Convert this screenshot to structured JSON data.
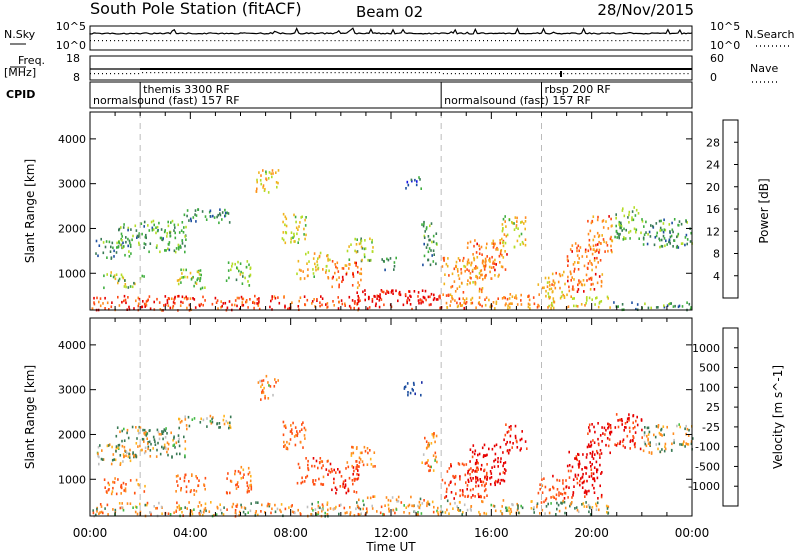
{
  "header": {
    "station": "South Pole Station (fitACF)",
    "beam": "Beam 02",
    "date": "28/Nov/2015"
  },
  "top_panel": {
    "nsky_label": "N.Sky",
    "nsky_ticks": [
      "10^5",
      "10^0"
    ],
    "nsearch_label": "N.Search",
    "nsearch_ticks": [
      "10^5",
      "10^0"
    ],
    "freq_label": "Freq.",
    "freq_unit": "[MHz]",
    "freq_ticks": [
      "18",
      "8"
    ],
    "nave_label": "Nave",
    "nave_ticks": [
      "60",
      "0"
    ],
    "cpid_label": "CPID",
    "modes": [
      {
        "label": "normalsound (fast) 157 RF",
        "start_h": 0.0
      },
      {
        "label": "themis 3300 RF",
        "start_h": 2.0
      },
      {
        "label": "normalsound (fast) 157 RF",
        "start_h": 14.0
      },
      {
        "label": "rbsp 200 RF",
        "start_h": 18.0
      }
    ]
  },
  "colors": {
    "power": [
      "#1414e6",
      "#1e4fa0",
      "#3a7a55",
      "#3fae3f",
      "#b4dc28",
      "#f0b41e",
      "#ff8c1e",
      "#ff4a14",
      "#e60000"
    ],
    "velocity": [
      "#1c2fa6",
      "#1e4fa0",
      "#3a7a55",
      "#44bb44",
      "#c0c0c0",
      "#ffb41e",
      "#ff8c1e",
      "#ff5014",
      "#e60000"
    ],
    "mode_marker": "#bbbbbb"
  },
  "axes": {
    "xlabel": "Time UT",
    "ylabel_range": "Slant Range [km]"
  },
  "colorbars": {
    "power": {
      "label": "Power [dB]",
      "ticks": [
        "28",
        "24",
        "20",
        "16",
        "12",
        "8",
        "4"
      ]
    },
    "velocity": {
      "label": "Velocity [m s^-1]",
      "ticks": [
        "1000",
        "500",
        "100",
        "25",
        "-25",
        "-100",
        "-500",
        "-1000"
      ]
    }
  },
  "chart_data": [
    {
      "type": "heatmap",
      "title": "Power",
      "xlabel": "Time UT",
      "ylabel": "Slant Range [km]",
      "x_range_hours": [
        0,
        24
      ],
      "x_ticks": [
        "00:00",
        "04:00",
        "08:00",
        "12:00",
        "16:00",
        "20:00",
        "00:00"
      ],
      "y_range_km": [
        180,
        4600
      ],
      "y_ticks": [
        1000,
        2000,
        3000,
        4000
      ],
      "colorbar_label": "Power [dB]",
      "colorbar_ticks": [
        4,
        8,
        12,
        16,
        20,
        24,
        28
      ],
      "colorbar_range": [
        0,
        30
      ],
      "echo_regions": [
        {
          "t0": 0.0,
          "t1": 10.8,
          "r0": 200,
          "r1": 520,
          "value": 26
        },
        {
          "t0": 10.5,
          "t1": 14.0,
          "r0": 220,
          "r1": 650,
          "value": 29
        },
        {
          "t0": 14.0,
          "t1": 18.0,
          "r0": 240,
          "r1": 560,
          "value": 22
        },
        {
          "t0": 18.0,
          "t1": 20.8,
          "r0": 240,
          "r1": 520,
          "value": 18
        },
        {
          "t0": 20.8,
          "t1": 24.0,
          "r0": 200,
          "r1": 380,
          "value": 9
        },
        {
          "t0": 0.2,
          "t1": 1.6,
          "r0": 1350,
          "r1": 1800,
          "value": 9
        },
        {
          "t0": 1.0,
          "t1": 3.8,
          "r0": 1500,
          "r1": 2200,
          "value": 11
        },
        {
          "t0": 3.5,
          "t1": 5.6,
          "r0": 2150,
          "r1": 2450,
          "value": 8
        },
        {
          "t0": 0.5,
          "t1": 2.2,
          "r0": 700,
          "r1": 1050,
          "value": 14
        },
        {
          "t0": 3.4,
          "t1": 4.6,
          "r0": 680,
          "r1": 1150,
          "value": 15
        },
        {
          "t0": 5.4,
          "t1": 6.4,
          "r0": 700,
          "r1": 1300,
          "value": 12
        },
        {
          "t0": 6.6,
          "t1": 7.5,
          "r0": 2800,
          "r1": 3350,
          "value": 18
        },
        {
          "t0": 7.6,
          "t1": 8.6,
          "r0": 1700,
          "r1": 2350,
          "value": 16
        },
        {
          "t0": 8.2,
          "t1": 9.6,
          "r0": 900,
          "r1": 1500,
          "value": 18
        },
        {
          "t0": 9.6,
          "t1": 10.8,
          "r0": 700,
          "r1": 1300,
          "value": 23
        },
        {
          "t0": 10.2,
          "t1": 11.4,
          "r0": 1300,
          "r1": 1800,
          "value": 13
        },
        {
          "t0": 11.6,
          "t1": 12.2,
          "r0": 1100,
          "r1": 1400,
          "value": 10
        },
        {
          "t0": 12.5,
          "t1": 13.2,
          "r0": 2900,
          "r1": 3200,
          "value": 6
        },
        {
          "t0": 13.2,
          "t1": 13.8,
          "r0": 1200,
          "r1": 2200,
          "value": 10
        },
        {
          "t0": 14.0,
          "t1": 15.8,
          "r0": 600,
          "r1": 1400,
          "value": 21
        },
        {
          "t0": 15.0,
          "t1": 16.6,
          "r0": 900,
          "r1": 1800,
          "value": 22
        },
        {
          "t0": 16.4,
          "t1": 17.4,
          "r0": 1600,
          "r1": 2300,
          "value": 17
        },
        {
          "t0": 17.8,
          "t1": 19.0,
          "r0": 500,
          "r1": 1100,
          "value": 20
        },
        {
          "t0": 19.0,
          "t1": 20.4,
          "r0": 600,
          "r1": 1700,
          "value": 24
        },
        {
          "t0": 19.8,
          "t1": 20.8,
          "r0": 1500,
          "r1": 2300,
          "value": 22
        },
        {
          "t0": 20.9,
          "t1": 22.0,
          "r0": 1700,
          "r1": 2500,
          "value": 12
        },
        {
          "t0": 22.0,
          "t1": 24.0,
          "r0": 1600,
          "r1": 2250,
          "value": 10
        }
      ]
    },
    {
      "type": "heatmap",
      "title": "Velocity",
      "xlabel": "Time UT",
      "ylabel": "Slant Range [km]",
      "x_range_hours": [
        0,
        24
      ],
      "x_ticks": [
        "00:00",
        "04:00",
        "08:00",
        "12:00",
        "16:00",
        "20:00",
        "00:00"
      ],
      "y_range_km": [
        180,
        4600
      ],
      "y_ticks": [
        1000,
        2000,
        3000,
        4000
      ],
      "colorbar_label": "Velocity [m s^-1]",
      "colorbar_ticks": [
        1000,
        500,
        100,
        25,
        -25,
        -100,
        -500,
        -1000
      ],
      "ground_scatter_color": "#c0c0c0",
      "echo_regions": [
        {
          "t0": 0.0,
          "t1": 10.8,
          "r0": 200,
          "r1": 520,
          "value": -120
        },
        {
          "t0": 10.5,
          "t1": 14.0,
          "r0": 220,
          "r1": 650,
          "value": -150
        },
        {
          "t0": 14.0,
          "t1": 18.0,
          "r0": 240,
          "r1": 560,
          "value": -60
        },
        {
          "t0": 18.0,
          "t1": 20.8,
          "r0": 240,
          "r1": 520,
          "value": 40
        },
        {
          "t0": 0.2,
          "t1": 1.6,
          "r0": 1350,
          "r1": 1800,
          "value": 0
        },
        {
          "t0": 1.0,
          "t1": 3.8,
          "r0": 1500,
          "r1": 2200,
          "value": 0
        },
        {
          "t0": 3.5,
          "t1": 5.6,
          "r0": 2150,
          "r1": 2450,
          "value": 0
        },
        {
          "t0": 0.5,
          "t1": 2.2,
          "r0": 700,
          "r1": 1050,
          "value": -300
        },
        {
          "t0": 3.4,
          "t1": 4.6,
          "r0": 680,
          "r1": 1150,
          "value": -350
        },
        {
          "t0": 5.4,
          "t1": 6.4,
          "r0": 700,
          "r1": 1300,
          "value": -300
        },
        {
          "t0": 6.6,
          "t1": 7.5,
          "r0": 2800,
          "r1": 3350,
          "value": -200
        },
        {
          "t0": 7.6,
          "t1": 8.6,
          "r0": 1700,
          "r1": 2350,
          "value": -400
        },
        {
          "t0": 8.2,
          "t1": 9.6,
          "r0": 900,
          "r1": 1500,
          "value": -500
        },
        {
          "t0": 9.6,
          "t1": 10.8,
          "r0": 700,
          "r1": 1300,
          "value": -700
        },
        {
          "t0": 10.2,
          "t1": 11.4,
          "r0": 1300,
          "r1": 1800,
          "value": -300
        },
        {
          "t0": 12.5,
          "t1": 13.2,
          "r0": 2900,
          "r1": 3200,
          "value": 600
        },
        {
          "t0": 13.2,
          "t1": 13.8,
          "r0": 1200,
          "r1": 2200,
          "value": -200
        },
        {
          "t0": 14.0,
          "t1": 15.8,
          "r0": 600,
          "r1": 1400,
          "value": -600
        },
        {
          "t0": 15.0,
          "t1": 16.6,
          "r0": 900,
          "r1": 1800,
          "value": -900
        },
        {
          "t0": 16.4,
          "t1": 17.4,
          "r0": 1600,
          "r1": 2300,
          "value": -800
        },
        {
          "t0": 17.8,
          "t1": 19.0,
          "r0": 500,
          "r1": 1100,
          "value": -500
        },
        {
          "t0": 19.0,
          "t1": 20.4,
          "r0": 600,
          "r1": 1700,
          "value": -800
        },
        {
          "t0": 19.8,
          "t1": 20.8,
          "r0": 1500,
          "r1": 2300,
          "value": -900
        },
        {
          "t0": 20.9,
          "t1": 22.0,
          "r0": 1700,
          "r1": 2500,
          "value": -700
        },
        {
          "t0": 22.0,
          "t1": 24.0,
          "r0": 1600,
          "r1": 2250,
          "value": 0
        }
      ]
    }
  ]
}
